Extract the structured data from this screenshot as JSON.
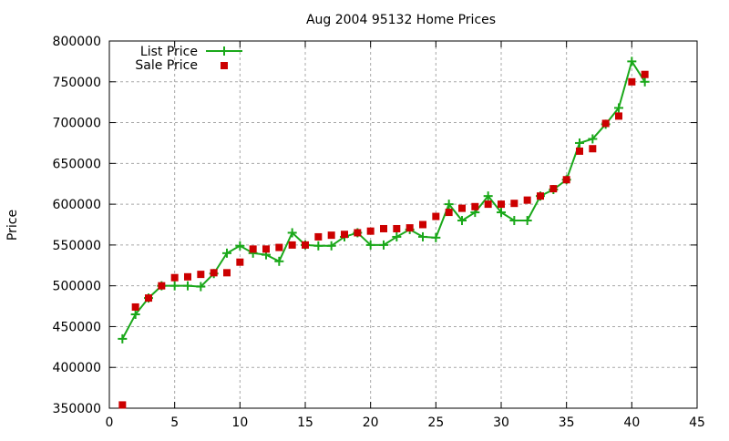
{
  "chart_data": {
    "type": "line",
    "title": "Aug 2004 95132 Home Prices",
    "xlabel": "",
    "ylabel": "Price",
    "xlim": [
      0,
      45
    ],
    "ylim": [
      350000,
      800000
    ],
    "x_ticks": [
      0,
      5,
      10,
      15,
      20,
      25,
      30,
      35,
      40,
      45
    ],
    "y_ticks": [
      350000,
      400000,
      450000,
      500000,
      550000,
      600000,
      650000,
      700000,
      750000,
      800000
    ],
    "grid": true,
    "legend_position": "top-left",
    "series": [
      {
        "name": "List Price",
        "style": "linespoints",
        "marker": "plus",
        "color": "#1aa81a",
        "x": [
          1,
          2,
          3,
          4,
          5,
          6,
          7,
          8,
          9,
          10,
          11,
          12,
          13,
          14,
          15,
          16,
          17,
          18,
          19,
          20,
          21,
          22,
          23,
          24,
          25,
          26,
          27,
          28,
          29,
          30,
          31,
          32,
          33,
          34,
          35,
          36,
          37,
          38,
          39,
          40,
          41
        ],
        "values": [
          435000,
          465000,
          485000,
          500000,
          500000,
          500000,
          499000,
          515000,
          540000,
          549000,
          540000,
          538000,
          530000,
          565000,
          550000,
          549000,
          549000,
          560000,
          565000,
          550000,
          550000,
          560000,
          569000,
          560000,
          559000,
          600000,
          580000,
          590000,
          610000,
          590000,
          580000,
          580000,
          610000,
          618000,
          630000,
          675000,
          680000,
          698000,
          718000,
          775000,
          750000
        ]
      },
      {
        "name": "Sale Price",
        "style": "points",
        "marker": "square",
        "color": "#cc0000",
        "x": [
          1,
          2,
          3,
          4,
          5,
          6,
          7,
          8,
          9,
          10,
          11,
          12,
          13,
          14,
          15,
          16,
          17,
          18,
          19,
          20,
          21,
          22,
          23,
          24,
          25,
          26,
          27,
          28,
          29,
          30,
          31,
          32,
          33,
          34,
          35,
          36,
          37,
          38,
          39,
          40,
          41
        ],
        "values": [
          354000,
          474000,
          485000,
          500000,
          510000,
          511000,
          514000,
          516000,
          516000,
          529000,
          545000,
          545000,
          547000,
          550000,
          550000,
          560000,
          562000,
          563000,
          565000,
          567000,
          570000,
          570000,
          571000,
          575000,
          585000,
          590000,
          595000,
          597000,
          600000,
          600000,
          601000,
          605000,
          610000,
          619000,
          630000,
          665000,
          668000,
          699000,
          708000,
          750000,
          759000
        ]
      }
    ]
  }
}
